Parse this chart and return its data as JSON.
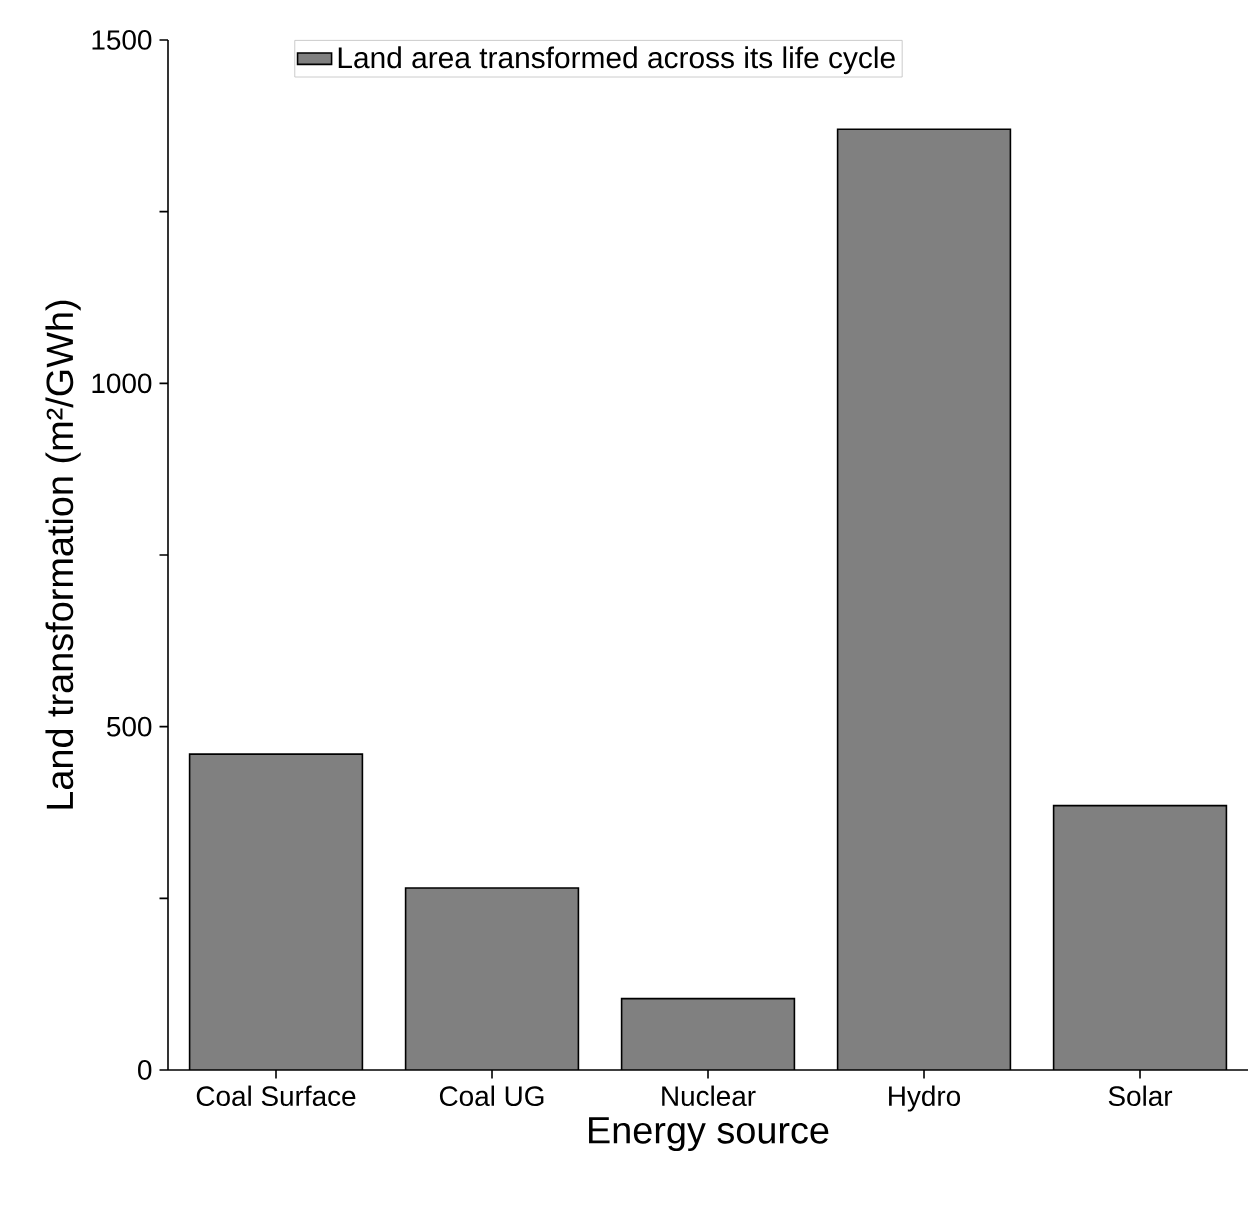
{
  "chart_data": {
    "type": "bar",
    "xlabel": "Energy source",
    "ylabel": "Land transformation (m²/GWh)",
    "categories": [
      "Coal Surface",
      "Coal UG",
      "Nuclear",
      "Hydro",
      "Solar"
    ],
    "series": [
      {
        "name": "Land area transformed across its life cycle",
        "color": "#808080",
        "values": [
          460,
          265,
          104,
          1370,
          385
        ]
      }
    ],
    "ylim": [
      0,
      1500
    ],
    "yticks": [
      0,
      {
        "value": 250,
        "label": null
      },
      500,
      {
        "value": 750,
        "label": null
      },
      1000,
      {
        "value": 1250,
        "label": null
      },
      1500
    ],
    "legend": "top",
    "grid": false
  }
}
